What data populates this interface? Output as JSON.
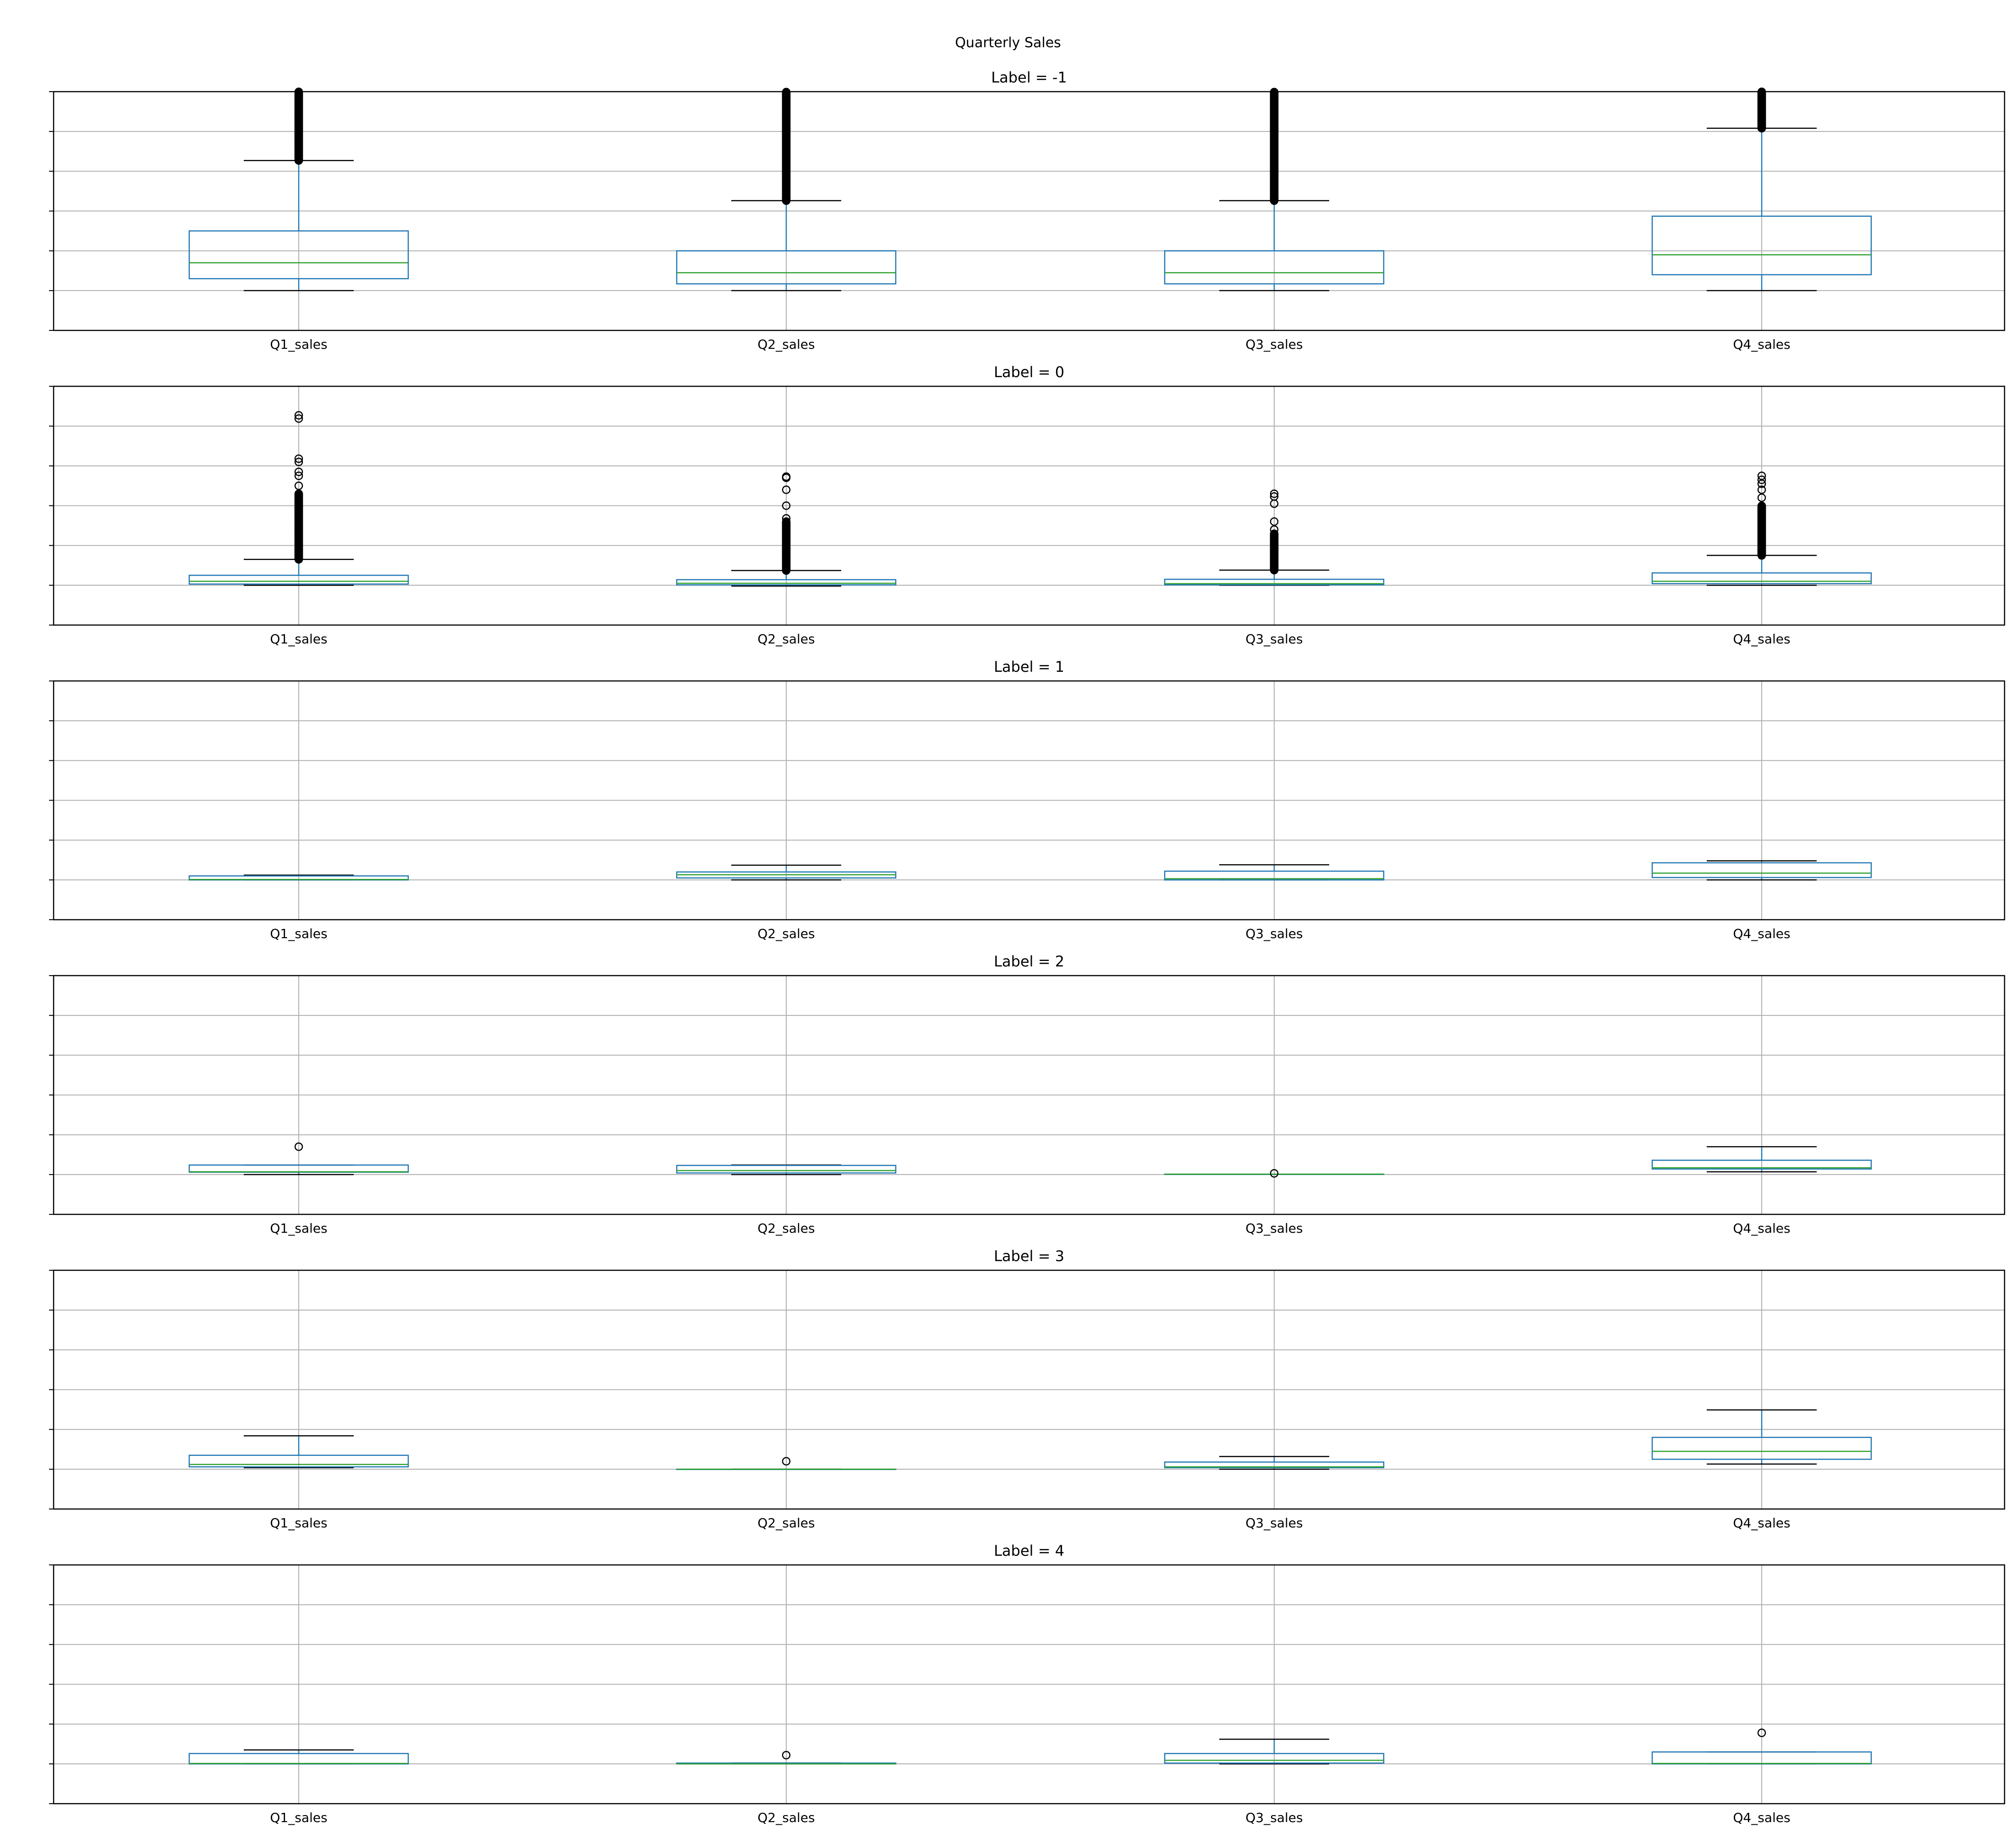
{
  "chart_data": {
    "type": "box",
    "suptitle": "Quarterly Sales",
    "categories": [
      "Q1_sales",
      "Q2_sales",
      "Q3_sales",
      "Q4_sales"
    ],
    "ylim": [
      0,
      600
    ],
    "yticks": [
      0,
      100,
      200,
      300,
      400,
      500,
      600
    ],
    "grid": true,
    "colors": {
      "box": "#1f77b4",
      "median": "#2ca02c",
      "whisker_cap": "#000000",
      "grid": "#b0b0b0",
      "flier": "#000000"
    },
    "panels": [
      {
        "title": "Label = -1",
        "boxes": [
          {
            "category": "Q1_sales",
            "whislo": 100,
            "q1": 130,
            "median": 170,
            "q3": 250,
            "whishi": 427,
            "fliers": "dense",
            "flier_range": [
              427,
              600
            ]
          },
          {
            "category": "Q2_sales",
            "whislo": 100,
            "q1": 117,
            "median": 145,
            "q3": 200,
            "whishi": 326,
            "fliers": "dense",
            "flier_range": [
              326,
              600
            ]
          },
          {
            "category": "Q3_sales",
            "whislo": 100,
            "q1": 117,
            "median": 145,
            "q3": 200,
            "whishi": 326,
            "fliers": "dense",
            "flier_range": [
              326,
              600
            ]
          },
          {
            "category": "Q4_sales",
            "whislo": 100,
            "q1": 140,
            "median": 190,
            "q3": 287,
            "whishi": 508,
            "fliers": "dense",
            "flier_range": [
              508,
              600
            ]
          }
        ]
      },
      {
        "title": "Label = 0",
        "boxes": [
          {
            "category": "Q1_sales",
            "whislo": 100,
            "q1": 103,
            "median": 110,
            "q3": 125,
            "whishi": 165,
            "fliers": "dense",
            "flier_range": [
              165,
              330
            ],
            "flier_points": [
              350,
              375,
              385,
              410,
              418,
              519,
              527
            ]
          },
          {
            "category": "Q2_sales",
            "whislo": 98,
            "q1": 101,
            "median": 105,
            "q3": 114,
            "whishi": 137,
            "fliers": "dense",
            "flier_range": [
              137,
              260
            ],
            "flier_points": [
              268,
              300,
              340,
              370,
              373
            ]
          },
          {
            "category": "Q3_sales",
            "whislo": 100,
            "q1": 101,
            "median": 104,
            "q3": 115,
            "whishi": 138,
            "fliers": "dense",
            "flier_range": [
              138,
              230
            ],
            "flier_points": [
              240,
              260,
              305,
              323,
              330
            ]
          },
          {
            "category": "Q4_sales",
            "whislo": 100,
            "q1": 104,
            "median": 110,
            "q3": 131,
            "whishi": 175,
            "fliers": "dense",
            "flier_range": [
              175,
              300
            ],
            "flier_points": [
              320,
              340,
              355,
              365,
              375
            ]
          }
        ]
      },
      {
        "title": "Label = 1",
        "boxes": [
          {
            "category": "Q1_sales",
            "whislo": 100,
            "q1": 100,
            "median": 101,
            "q3": 110,
            "whishi": 112,
            "fliers": []
          },
          {
            "category": "Q2_sales",
            "whislo": 100,
            "q1": 105,
            "median": 113,
            "q3": 120,
            "whishi": 137,
            "fliers": []
          },
          {
            "category": "Q3_sales",
            "whislo": 100,
            "q1": 100,
            "median": 103,
            "q3": 122,
            "whishi": 138,
            "fliers": []
          },
          {
            "category": "Q4_sales",
            "whislo": 100,
            "q1": 106,
            "median": 117,
            "q3": 143,
            "whishi": 148,
            "fliers": []
          }
        ]
      },
      {
        "title": "Label = 2",
        "boxes": [
          {
            "category": "Q1_sales",
            "whislo": 100,
            "q1": 106,
            "median": 107,
            "q3": 124,
            "whishi": 124,
            "fliers": [
              170
            ]
          },
          {
            "category": "Q2_sales",
            "whislo": 100,
            "q1": 104,
            "median": 110,
            "q3": 123,
            "whishi": 124,
            "fliers": []
          },
          {
            "category": "Q3_sales",
            "whislo": 101,
            "q1": 101,
            "median": 101,
            "q3": 101,
            "whishi": 101,
            "fliers": [
              103
            ]
          },
          {
            "category": "Q4_sales",
            "whislo": 107,
            "q1": 114,
            "median": 117,
            "q3": 136,
            "whishi": 170,
            "fliers": []
          }
        ]
      },
      {
        "title": "Label = 3",
        "boxes": [
          {
            "category": "Q1_sales",
            "whislo": 104,
            "q1": 106,
            "median": 112,
            "q3": 135,
            "whishi": 184,
            "fliers": []
          },
          {
            "category": "Q2_sales",
            "whislo": 100,
            "q1": 100,
            "median": 100,
            "q3": 100,
            "whishi": 100,
            "fliers": [
              120
            ]
          },
          {
            "category": "Q3_sales",
            "whislo": 100,
            "q1": 104,
            "median": 106,
            "q3": 118,
            "whishi": 132,
            "fliers": []
          },
          {
            "category": "Q4_sales",
            "whislo": 113,
            "q1": 125,
            "median": 145,
            "q3": 180,
            "whishi": 249,
            "fliers": []
          }
        ]
      },
      {
        "title": "Label = 4",
        "boxes": [
          {
            "category": "Q1_sales",
            "whislo": 100,
            "q1": 100,
            "median": 101,
            "q3": 126,
            "whishi": 135,
            "fliers": []
          },
          {
            "category": "Q2_sales",
            "whislo": 100,
            "q1": 100,
            "median": 100,
            "q3": 102,
            "whishi": 102,
            "fliers": [
              122
            ]
          },
          {
            "category": "Q3_sales",
            "whislo": 100,
            "q1": 102,
            "median": 109,
            "q3": 126,
            "whishi": 162,
            "fliers": []
          },
          {
            "category": "Q4_sales",
            "whislo": 100,
            "q1": 100,
            "median": 101,
            "q3": 130,
            "whishi": 130,
            "fliers": [
              178
            ]
          }
        ]
      }
    ]
  }
}
